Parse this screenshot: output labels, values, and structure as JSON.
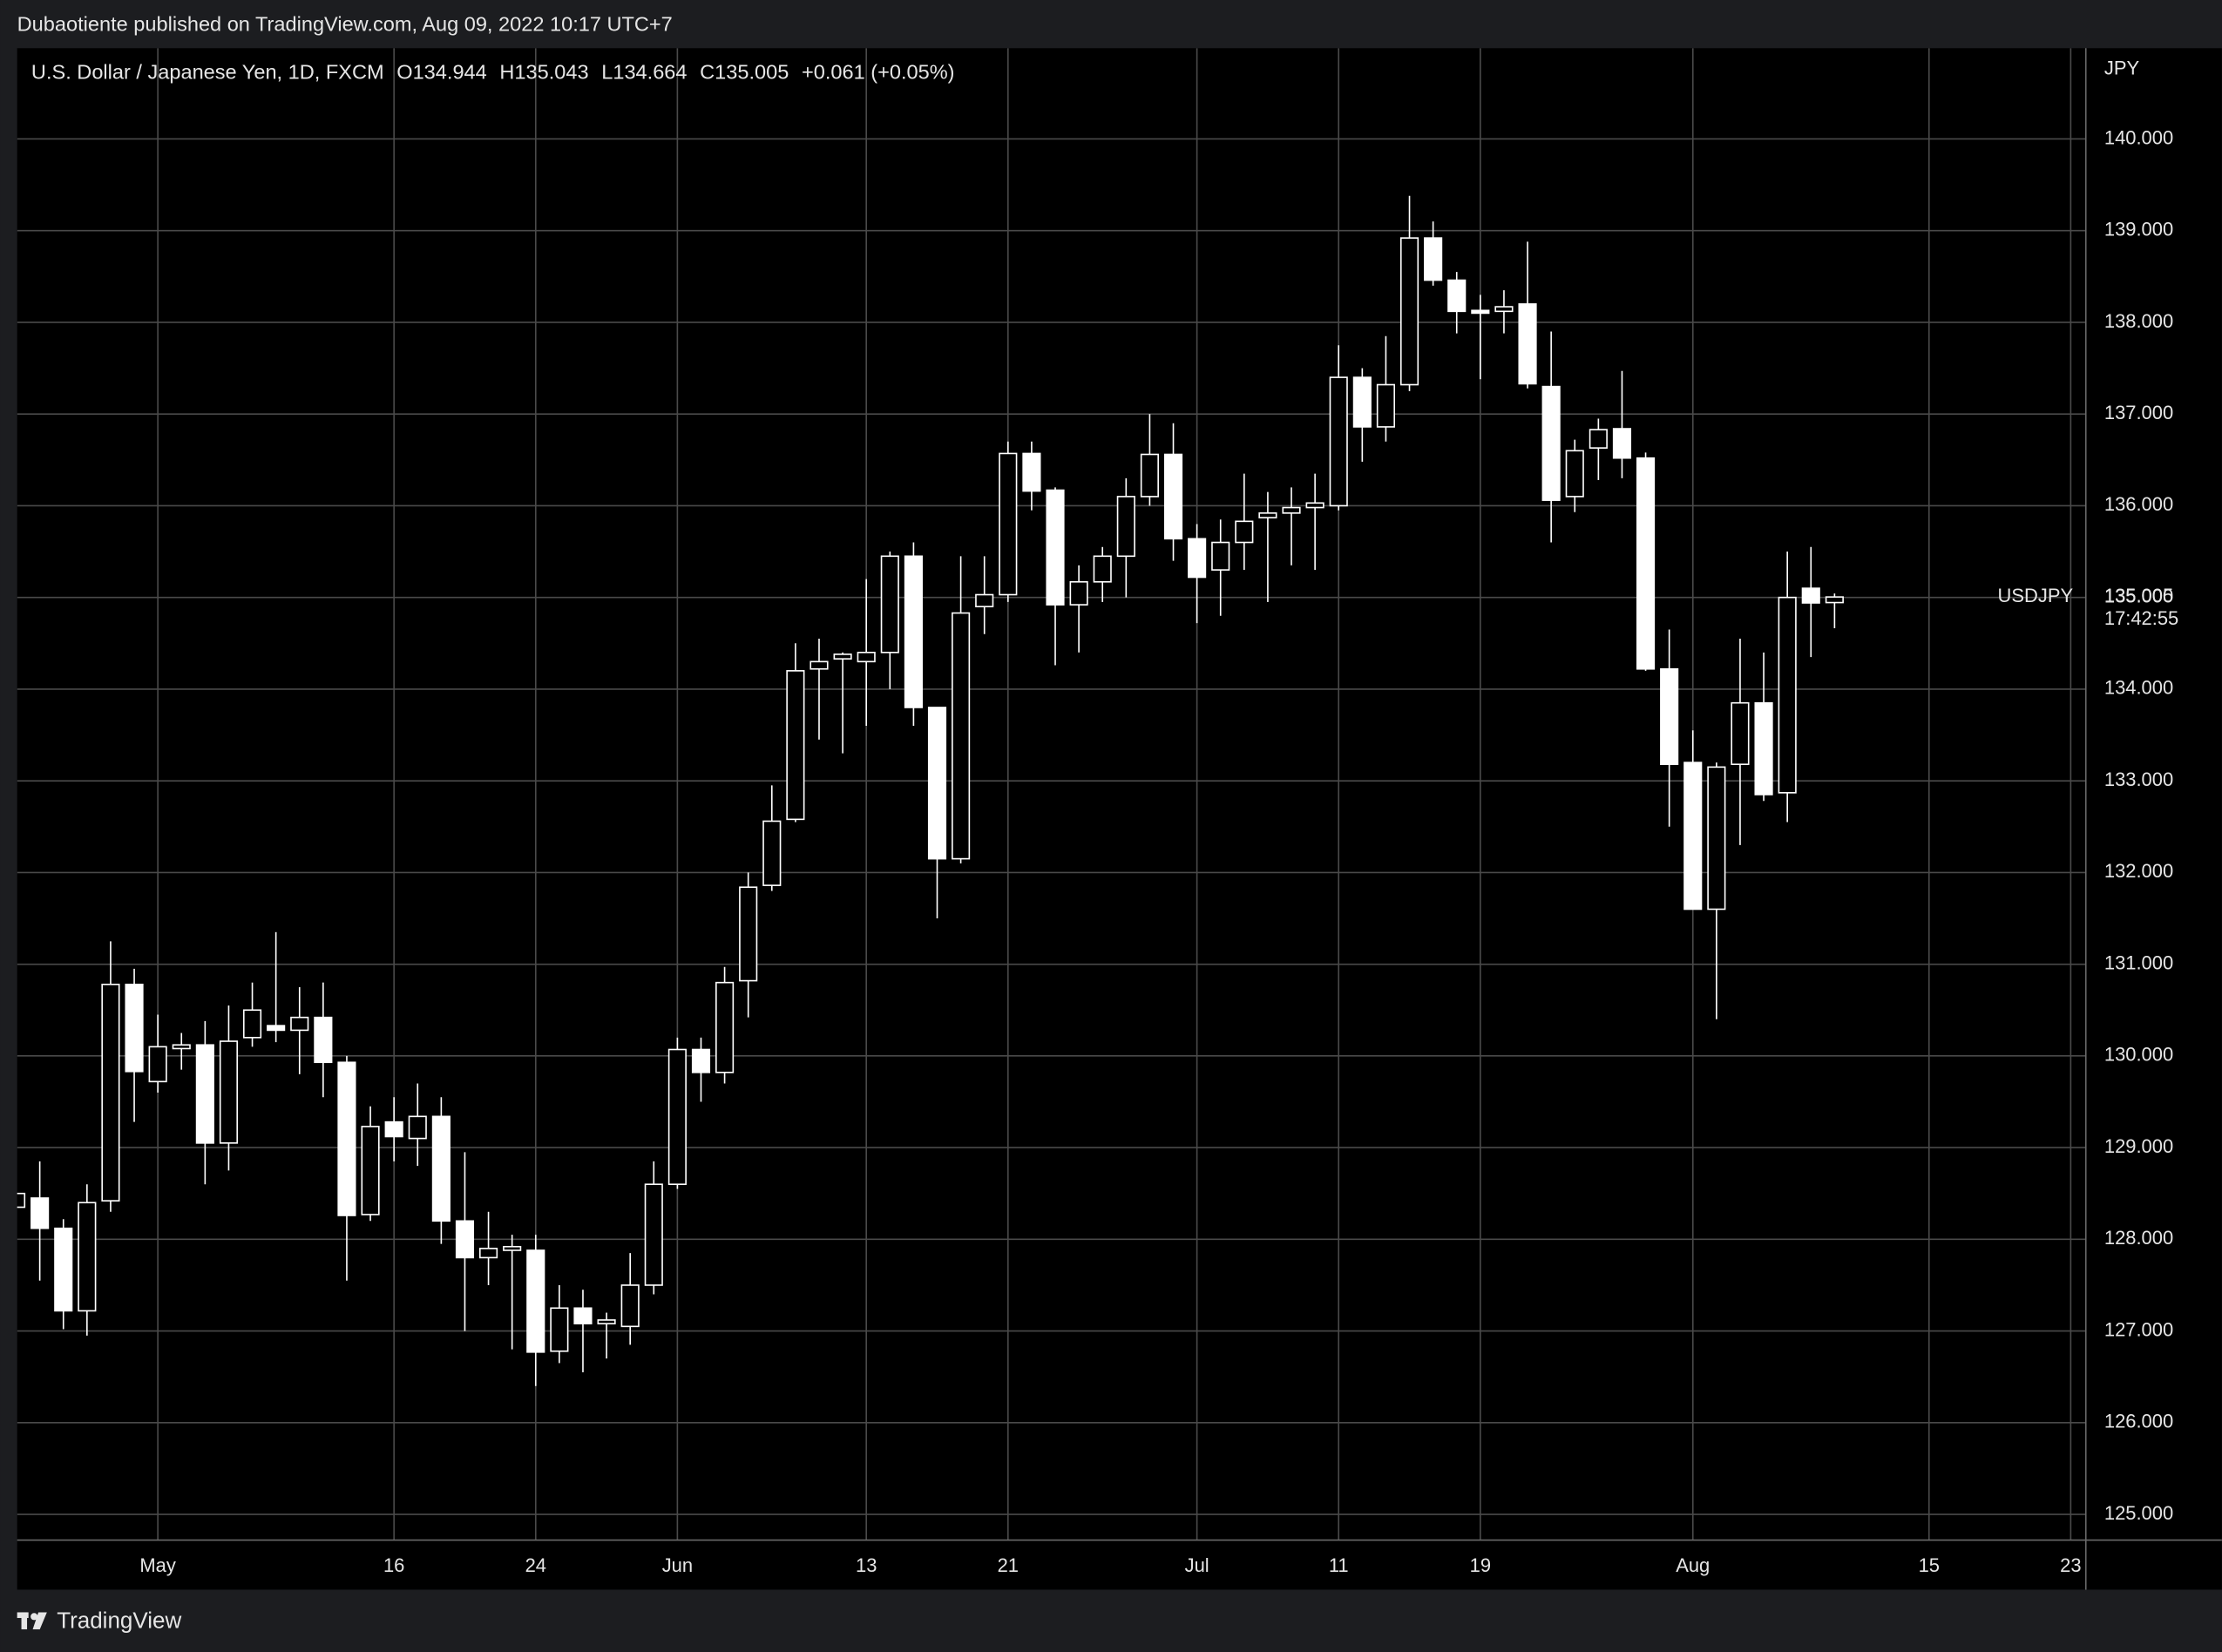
{
  "published": "Dubaotiente published on TradingView.com, Aug 09, 2022 10:17 UTC+7",
  "brand": "TradingView",
  "chart_data": {
    "type": "candlestick",
    "title": "U.S. Dollar / Japanese Yen, 1D, FXCM",
    "legend_values": [
      "O134.944",
      "H135.043",
      "L134.664",
      "C135.005",
      "+0.061 (+0.05%)"
    ],
    "currency": "JPY",
    "last_price_label": "135.005",
    "countdown": "17:42:55",
    "grid": true,
    "up_color": "#000000",
    "down_color": "#ffffff",
    "wick_color": "#ffffff",
    "categories": [
      null,
      null,
      null,
      null,
      null,
      null,
      "May",
      null,
      null,
      null,
      null,
      null,
      null,
      null,
      null,
      null,
      "16",
      null,
      null,
      null,
      null,
      null,
      "24",
      null,
      null,
      null,
      null,
      null,
      "Jun",
      null,
      null,
      null,
      null,
      null,
      null,
      null,
      "13",
      null,
      null,
      null,
      null,
      null,
      "21",
      null,
      null,
      null,
      null,
      null,
      null,
      null,
      "Jul",
      null,
      null,
      null,
      null,
      null,
      "11",
      null,
      null,
      null,
      null,
      null,
      "19",
      null,
      null,
      null,
      null,
      null,
      null,
      null,
      null,
      "Aug",
      null,
      null,
      null,
      null,
      null,
      null,
      null,
      null,
      null,
      "15",
      null,
      null,
      null,
      null,
      null,
      "23"
    ],
    "series": [
      {
        "name": "USDJPY",
        "open": [
          128.35,
          128.45,
          128.12,
          127.22,
          128.42,
          130.78,
          129.72,
          130.08,
          130.12,
          129.05,
          130.2,
          130.33,
          130.28,
          130.42,
          129.93,
          128.27,
          129.28,
          129.1,
          129.34,
          128.2,
          127.8,
          127.88,
          127.88,
          126.78,
          127.25,
          127.08,
          127.05,
          127.5,
          128.6,
          130.07,
          129.82,
          130.82,
          131.86,
          132.58,
          134.22,
          134.33,
          134.3,
          134.4,
          135.45,
          133.8,
          132.15,
          134.9,
          135.03,
          136.57,
          136.17,
          134.92,
          135.17,
          135.45,
          136.1,
          136.56,
          135.64,
          135.3,
          135.6,
          135.87,
          135.92,
          135.98,
          136.0,
          137.4,
          136.86,
          137.32,
          138.92,
          138.46,
          138.13,
          138.12,
          138.2,
          137.3,
          136.1,
          136.63,
          136.84,
          136.52,
          134.22,
          133.2,
          131.6,
          133.18,
          133.85,
          132.87,
          135.1,
          134.944,
          null,
          null,
          null,
          null,
          null,
          null,
          null,
          null,
          null,
          null
        ],
        "high": [
          128.55,
          128.85,
          128.22,
          128.6,
          131.25,
          130.95,
          130.45,
          130.25,
          130.38,
          130.55,
          130.8,
          131.35,
          130.75,
          130.8,
          130.0,
          129.45,
          129.55,
          129.7,
          129.55,
          128.95,
          128.3,
          128.05,
          128.05,
          127.5,
          127.45,
          127.2,
          127.85,
          128.85,
          130.2,
          130.2,
          130.97,
          132.0,
          132.95,
          134.5,
          134.55,
          134.4,
          135.2,
          135.5,
          135.6,
          133.8,
          135.45,
          135.45,
          136.7,
          136.7,
          136.2,
          135.35,
          135.55,
          136.3,
          137.0,
          136.9,
          135.8,
          135.85,
          136.35,
          136.15,
          136.2,
          136.35,
          137.75,
          137.5,
          137.85,
          139.38,
          139.1,
          138.55,
          138.3,
          138.35,
          138.88,
          137.9,
          136.72,
          136.95,
          137.47,
          136.58,
          134.65,
          133.55,
          133.2,
          134.55,
          134.4,
          135.5,
          135.55,
          135.043,
          null,
          null,
          null,
          null,
          null,
          null,
          null,
          null,
          null,
          null
        ],
        "low": [
          128.3,
          127.55,
          127.02,
          126.95,
          128.3,
          129.28,
          129.6,
          129.85,
          128.6,
          128.75,
          130.1,
          130.15,
          129.8,
          129.55,
          127.55,
          128.2,
          128.85,
          128.8,
          127.95,
          127.0,
          127.5,
          126.8,
          126.4,
          126.65,
          126.55,
          126.7,
          126.85,
          127.4,
          128.55,
          129.5,
          129.7,
          130.42,
          131.8,
          132.55,
          133.45,
          133.3,
          133.6,
          134.0,
          133.6,
          131.5,
          132.1,
          134.6,
          134.95,
          135.95,
          134.26,
          134.4,
          134.95,
          135.0,
          136.0,
          135.4,
          134.72,
          134.8,
          135.3,
          134.95,
          135.35,
          135.3,
          135.95,
          136.48,
          136.7,
          137.25,
          138.4,
          137.88,
          137.38,
          137.88,
          137.28,
          135.6,
          135.93,
          136.28,
          136.3,
          134.2,
          132.5,
          131.6,
          130.4,
          132.3,
          132.78,
          132.55,
          134.35,
          134.664,
          null,
          null,
          null,
          null,
          null,
          null,
          null,
          null,
          null,
          null
        ],
        "close": [
          128.5,
          128.12,
          127.22,
          128.4,
          130.78,
          129.83,
          130.1,
          130.12,
          129.05,
          130.16,
          130.5,
          130.28,
          130.42,
          129.93,
          128.26,
          129.23,
          129.12,
          129.34,
          128.2,
          127.8,
          127.9,
          127.92,
          126.77,
          127.25,
          127.08,
          127.12,
          127.5,
          128.6,
          130.07,
          129.82,
          130.8,
          131.84,
          132.56,
          134.2,
          134.3,
          134.38,
          134.4,
          135.45,
          133.8,
          132.15,
          134.83,
          135.03,
          136.57,
          136.16,
          134.92,
          135.17,
          135.45,
          136.1,
          136.56,
          135.64,
          135.22,
          135.6,
          135.83,
          135.92,
          135.98,
          136.03,
          137.4,
          136.86,
          137.32,
          138.92,
          138.46,
          138.12,
          138.1,
          138.17,
          137.33,
          136.06,
          136.6,
          136.83,
          136.52,
          134.22,
          133.18,
          131.6,
          133.15,
          133.85,
          132.85,
          135.0,
          134.94,
          135.005,
          null,
          null,
          null,
          null,
          null,
          null,
          null,
          null,
          null,
          null
        ]
      }
    ],
    "ylim": [
      124.72,
      140.99
    ],
    "yticks": [
      {
        "value": 125,
        "label": "125.000"
      },
      {
        "value": 126,
        "label": "126.000"
      },
      {
        "value": 127,
        "label": "127.000"
      },
      {
        "value": 128,
        "label": "128.000"
      },
      {
        "value": 129,
        "label": "129.000"
      },
      {
        "value": 130,
        "label": "130.000"
      },
      {
        "value": 131,
        "label": "131.000"
      },
      {
        "value": 132,
        "label": "132.000"
      },
      {
        "value": 133,
        "label": "133.000"
      },
      {
        "value": 134,
        "label": "134.000"
      },
      {
        "value": 135,
        "label": "135.000"
      },
      {
        "value": 136,
        "label": "136.000"
      },
      {
        "value": 137,
        "label": "137.000"
      },
      {
        "value": 138,
        "label": "138.000"
      },
      {
        "value": 139,
        "label": "139.000"
      },
      {
        "value": 140,
        "label": "140.000"
      }
    ]
  }
}
